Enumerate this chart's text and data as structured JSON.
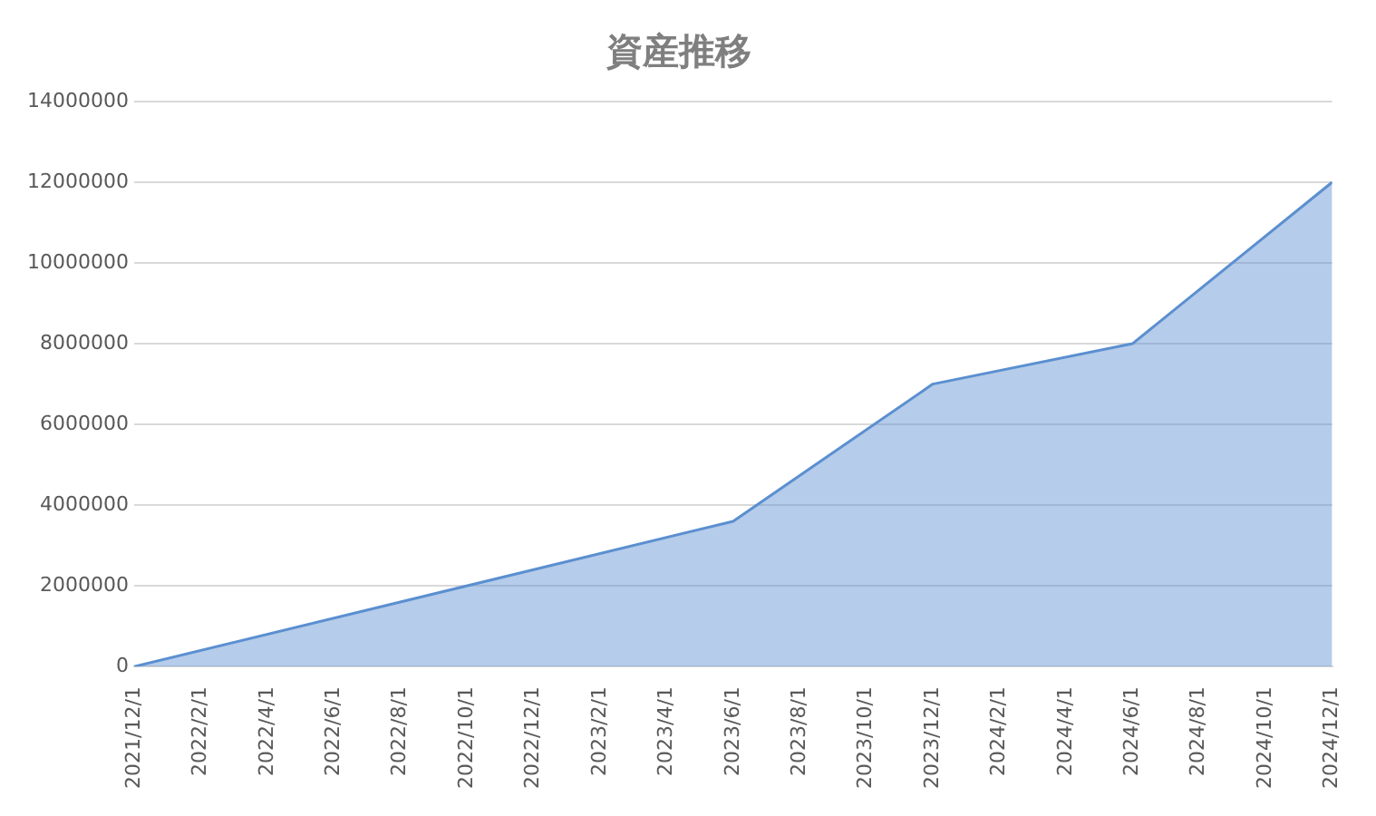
{
  "chart_data": {
    "type": "area",
    "title": "資産推移",
    "x": [
      "2021-12-01",
      "2023-06-01",
      "2023-12-01",
      "2024-06-01",
      "2024-12-01"
    ],
    "series": [
      {
        "color": "#5b8fd0",
        "values": [
          0,
          3600000,
          7000000,
          8000000,
          12000000
        ]
      }
    ],
    "xlim": [
      "2021-12-01",
      "2024-12-01"
    ],
    "xticks": [
      {
        "value": "2021-12-01",
        "label": "2021/12/1"
      },
      {
        "value": "2022-02-01",
        "label": "2022/2/1"
      },
      {
        "value": "2022-04-01",
        "label": "2022/4/1"
      },
      {
        "value": "2022-06-01",
        "label": "2022/6/1"
      },
      {
        "value": "2022-08-01",
        "label": "2022/8/1"
      },
      {
        "value": "2022-10-01",
        "label": "2022/10/1"
      },
      {
        "value": "2022-12-01",
        "label": "2022/12/1"
      },
      {
        "value": "2023-02-01",
        "label": "2023/2/1"
      },
      {
        "value": "2023-04-01",
        "label": "2023/4/1"
      },
      {
        "value": "2023-06-01",
        "label": "2023/6/1"
      },
      {
        "value": "2023-08-01",
        "label": "2023/8/1"
      },
      {
        "value": "2023-10-01",
        "label": "2023/10/1"
      },
      {
        "value": "2023-12-01",
        "label": "2023/12/1"
      },
      {
        "value": "2024-02-01",
        "label": "2024/2/1"
      },
      {
        "value": "2024-04-01",
        "label": "2024/4/1"
      },
      {
        "value": "2024-06-01",
        "label": "2024/6/1"
      },
      {
        "value": "2024-08-01",
        "label": "2024/8/1"
      },
      {
        "value": "2024-10-01",
        "label": "2024/10/1"
      },
      {
        "value": "2024-12-01",
        "label": "2024/12/1"
      }
    ],
    "ylim": [
      0,
      14000000
    ],
    "yticks": [
      0,
      2000000,
      4000000,
      6000000,
      8000000,
      10000000,
      12000000,
      14000000
    ],
    "grid": "y",
    "legend": false,
    "marker": "none"
  }
}
